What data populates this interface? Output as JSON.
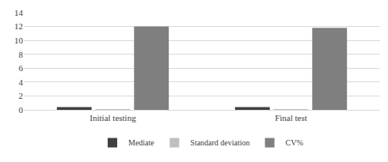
{
  "chart_data": {
    "type": "bar",
    "categories": [
      "Initial testing",
      "Final test"
    ],
    "series": [
      {
        "name": "Mediate",
        "color": "#404040",
        "values": [
          0.4,
          0.4
        ]
      },
      {
        "name": "Standard deviation",
        "color": "#bfbfbf",
        "values": [
          0.05,
          0.05
        ]
      },
      {
        "name": "CV%",
        "color": "#7f7f7f",
        "values": [
          12.0,
          11.8
        ]
      }
    ],
    "ylim": [
      0,
      14
    ],
    "yticks": [
      0,
      2,
      4,
      6,
      8,
      10,
      12,
      14
    ],
    "grid": true,
    "legend": "bottom"
  }
}
